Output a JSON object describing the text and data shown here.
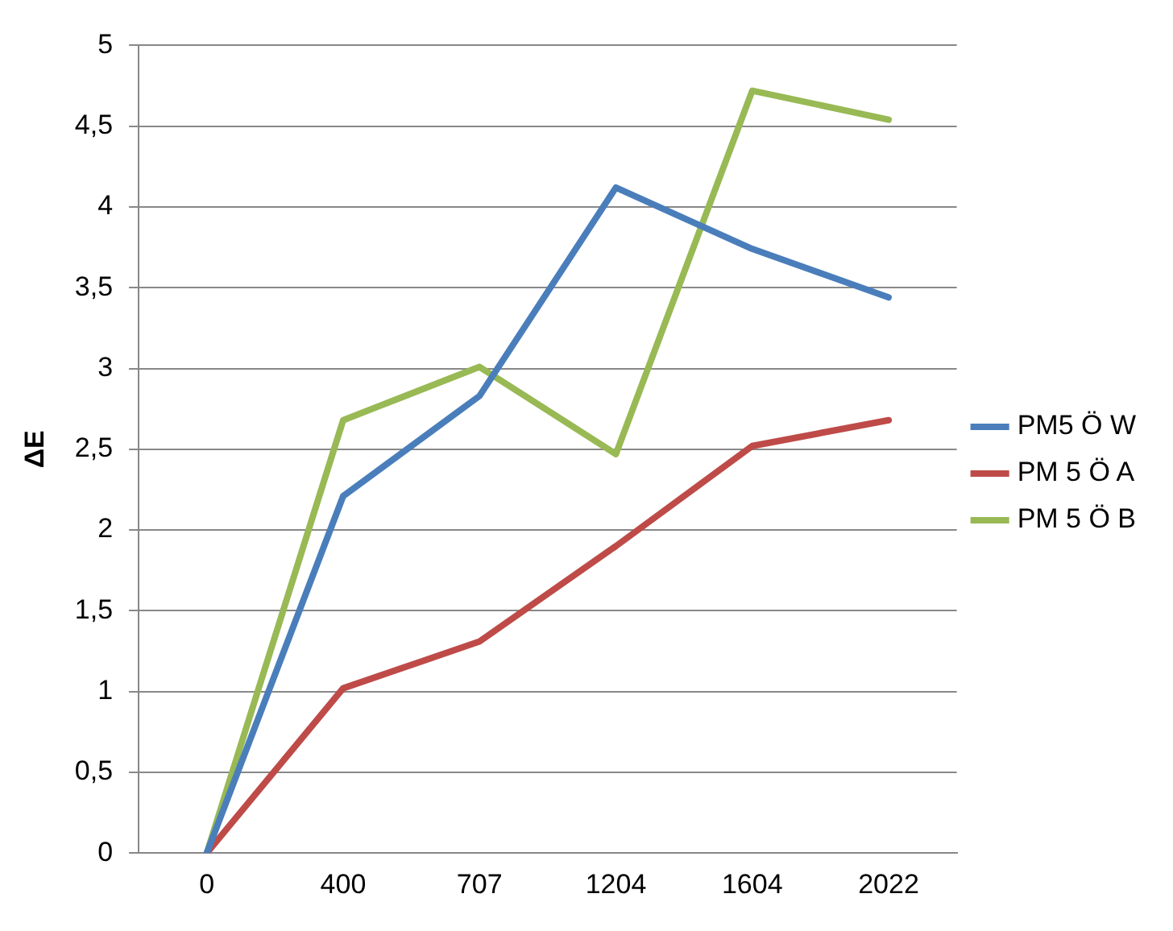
{
  "chart_data": {
    "type": "line",
    "ylabel": "ΔE",
    "categories": [
      "0",
      "400",
      "707",
      "1204",
      "1604",
      "2022"
    ],
    "series": [
      {
        "name": "PM5 Ö W",
        "color": "#4a7ebb",
        "values": [
          0,
          2.21,
          2.83,
          4.12,
          3.74,
          3.44
        ]
      },
      {
        "name": "PM 5 Ö A",
        "color": "#be4b48",
        "values": [
          0,
          1.02,
          1.31,
          1.9,
          2.52,
          2.68
        ]
      },
      {
        "name": "PM 5 Ö B",
        "color": "#98b954",
        "values": [
          0,
          2.68,
          3.01,
          2.47,
          4.72,
          4.54
        ]
      }
    ],
    "ylim": [
      0,
      5
    ],
    "yticks": [
      0,
      {
        "value": 0.5,
        "label": "0,5"
      },
      1,
      {
        "value": 1.5,
        "label": "1,5"
      },
      2,
      {
        "value": 2.5,
        "label": "2,5"
      },
      3,
      {
        "value": 3.5,
        "label": "3,5"
      },
      4,
      {
        "value": 4.5,
        "label": "4,5"
      },
      5
    ],
    "grid": "y",
    "legend": "right",
    "marker": "none",
    "line_style": "solid"
  }
}
